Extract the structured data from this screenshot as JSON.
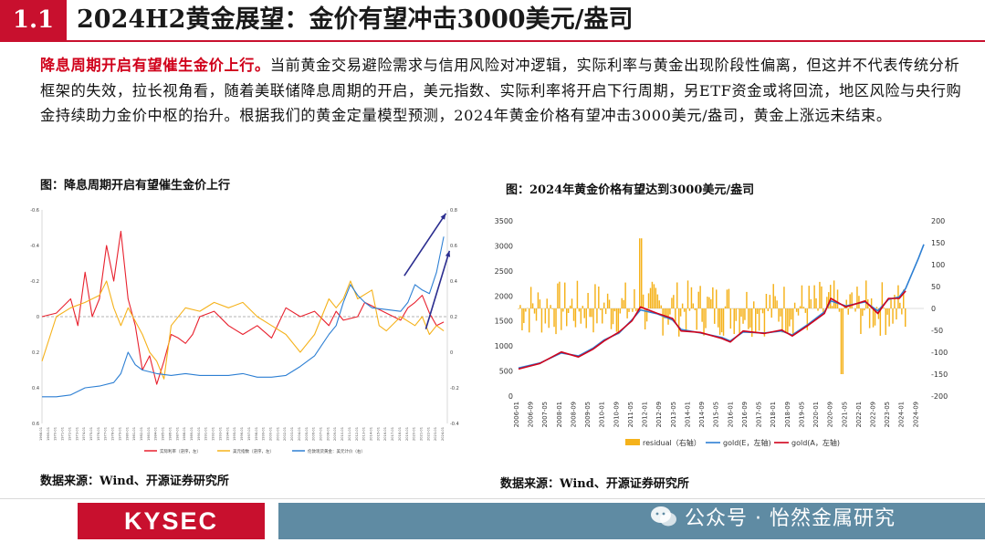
{
  "header": {
    "section_number": "1.1",
    "title": "2024H2黄金展望：金价有望冲击3000美元/盎司"
  },
  "paragraph": {
    "highlight": "降息周期开启有望催生金价上行。",
    "body": "当前黄金交易避险需求与信用风险对冲逻辑，实际利率与黄金出现阶段性偏离，但这并不代表传统分析框架的失效，拉长视角看，随着美联储降息周期的开启，美元指数、实际利率将开启下行周期，另ETF资金或将回流，地区风险与央行购金持续助力金价中枢的抬升。根据我们的黄金定量模型预测，2024年黄金价格有望冲击3000美元/盎司，黄金上涨远未结束。"
  },
  "figure_left": {
    "title": "图：降息周期开启有望催生金价上行",
    "source": "数据来源：Wind、开源证券研究所"
  },
  "figure_right": {
    "title": "图：2024年黄金价格有望达到3000美元/盎司",
    "source": "数据来源：Wind、开源证券研究所"
  },
  "footer": {
    "logo": "KYSEC",
    "watermark": "公众号 · 怡然金属研究"
  },
  "chart_data": [
    {
      "type": "line",
      "title": "降息周期开启有望催生金价上行",
      "y_left_ticks": [
        "-0.6",
        "-0.4",
        "-0.2",
        "0",
        "0.2",
        "0.4",
        "0.6"
      ],
      "y_left_range": [
        -0.6,
        0.6
      ],
      "y_left_inverted": true,
      "y_right_ticks": [
        "0.8",
        "0.6",
        "0.4",
        "0.2",
        "0",
        "-0.2",
        "-0.4"
      ],
      "y_right_range": [
        -0.4,
        0.8
      ],
      "x_start": "1968-01",
      "x_end": "2024-01",
      "legend": [
        "实际利率（逆序，左）",
        "美元指数（逆序，左）",
        "伦敦现货黄金：美元计价（右）"
      ],
      "colors": [
        "#e8212e",
        "#f5b21b",
        "#2d7fd3",
        "#2b2d8f"
      ],
      "series": [
        {
          "name": "实际利率（逆序，左）",
          "color": "#e8212e",
          "points": [
            [
              1968,
              0
            ],
            [
              1970,
              -0.02
            ],
            [
              1972,
              -0.1
            ],
            [
              1973,
              0.05
            ],
            [
              1974,
              -0.25
            ],
            [
              1975,
              0.0
            ],
            [
              1976,
              -0.1
            ],
            [
              1977,
              -0.4
            ],
            [
              1978,
              -0.2
            ],
            [
              1979,
              -0.48
            ],
            [
              1980,
              -0.1
            ],
            [
              1981,
              0.05
            ],
            [
              1982,
              0.3
            ],
            [
              1983,
              0.22
            ],
            [
              1984,
              0.38
            ],
            [
              1985,
              0.25
            ],
            [
              1986,
              0.1
            ],
            [
              1987,
              0.12
            ],
            [
              1988,
              0.15
            ],
            [
              1989,
              0.1
            ],
            [
              1990,
              0.0
            ],
            [
              1992,
              -0.03
            ],
            [
              1994,
              0.05
            ],
            [
              1996,
              0.1
            ],
            [
              1998,
              0.05
            ],
            [
              2000,
              0.12
            ],
            [
              2002,
              -0.05
            ],
            [
              2004,
              0.0
            ],
            [
              2006,
              -0.03
            ],
            [
              2008,
              0.05
            ],
            [
              2009,
              -0.03
            ],
            [
              2010,
              0.02
            ],
            [
              2012,
              0.0
            ],
            [
              2013,
              -0.08
            ],
            [
              2014,
              -0.06
            ],
            [
              2016,
              -0.02
            ],
            [
              2018,
              0.02
            ],
            [
              2019,
              -0.05
            ],
            [
              2020,
              -0.08
            ],
            [
              2021,
              -0.12
            ],
            [
              2022,
              -0.02
            ],
            [
              2023,
              0.05
            ],
            [
              2024,
              0.03
            ]
          ]
        },
        {
          "name": "美元指数（逆序，左）",
          "color": "#f5b21b",
          "points": [
            [
              1968,
              0.25
            ],
            [
              1970,
              0.0
            ],
            [
              1972,
              -0.05
            ],
            [
              1974,
              -0.08
            ],
            [
              1976,
              -0.12
            ],
            [
              1977,
              -0.2
            ],
            [
              1978,
              -0.05
            ],
            [
              1979,
              0.05
            ],
            [
              1980,
              -0.05
            ],
            [
              1982,
              0.1
            ],
            [
              1983,
              0.2
            ],
            [
              1984,
              0.25
            ],
            [
              1985,
              0.35
            ],
            [
              1986,
              0.05
            ],
            [
              1988,
              -0.05
            ],
            [
              1990,
              -0.03
            ],
            [
              1992,
              -0.08
            ],
            [
              1994,
              -0.05
            ],
            [
              1996,
              -0.08
            ],
            [
              1998,
              0.0
            ],
            [
              2000,
              0.05
            ],
            [
              2002,
              0.1
            ],
            [
              2004,
              0.2
            ],
            [
              2006,
              0.1
            ],
            [
              2008,
              -0.1
            ],
            [
              2009,
              -0.05
            ],
            [
              2010,
              -0.1
            ],
            [
              2011,
              -0.2
            ],
            [
              2012,
              -0.1
            ],
            [
              2014,
              -0.15
            ],
            [
              2015,
              0.05
            ],
            [
              2016,
              0.08
            ],
            [
              2018,
              0.0
            ],
            [
              2020,
              0.05
            ],
            [
              2021,
              0.0
            ],
            [
              2022,
              0.1
            ],
            [
              2023,
              0.05
            ],
            [
              2024,
              0.08
            ]
          ]
        },
        {
          "name": "伦敦现货黄金：美元计价（右）",
          "color": "#2d7fd3",
          "points": [
            [
              1968,
              -0.25
            ],
            [
              1970,
              -0.25
            ],
            [
              1972,
              -0.24
            ],
            [
              1974,
              -0.2
            ],
            [
              1976,
              -0.19
            ],
            [
              1978,
              -0.17
            ],
            [
              1979,
              -0.12
            ],
            [
              1980,
              0.0
            ],
            [
              1981,
              -0.07
            ],
            [
              1982,
              -0.1
            ],
            [
              1984,
              -0.12
            ],
            [
              1986,
              -0.13
            ],
            [
              1988,
              -0.12
            ],
            [
              1990,
              -0.13
            ],
            [
              1992,
              -0.13
            ],
            [
              1994,
              -0.13
            ],
            [
              1996,
              -0.12
            ],
            [
              1998,
              -0.14
            ],
            [
              2000,
              -0.14
            ],
            [
              2002,
              -0.13
            ],
            [
              2004,
              -0.08
            ],
            [
              2006,
              -0.02
            ],
            [
              2008,
              0.1
            ],
            [
              2009,
              0.15
            ],
            [
              2010,
              0.28
            ],
            [
              2011,
              0.38
            ],
            [
              2012,
              0.32
            ],
            [
              2013,
              0.28
            ],
            [
              2014,
              0.25
            ],
            [
              2016,
              0.24
            ],
            [
              2018,
              0.23
            ],
            [
              2019,
              0.28
            ],
            [
              2020,
              0.38
            ],
            [
              2021,
              0.35
            ],
            [
              2022,
              0.33
            ],
            [
              2023,
              0.45
            ],
            [
              2024,
              0.65
            ]
          ]
        }
      ],
      "annotations": [
        "up-arrow-blue-series",
        "up-arrow-red-series"
      ]
    },
    {
      "type": "bar+line",
      "title": "2024年黄金价格有望达到3000美元/盎司",
      "y_left_ticks": [
        "0",
        "500",
        "1000",
        "1500",
        "2000",
        "2500",
        "3000",
        "3500"
      ],
      "y_left_range": [
        0,
        3500
      ],
      "y_right_ticks": [
        "-200",
        "-150",
        "-100",
        "-50",
        "0",
        "50",
        "100",
        "150",
        "200"
      ],
      "y_right_range": [
        -200,
        200
      ],
      "x_labels": [
        "2006-01",
        "2006-09",
        "2007-05",
        "2008-01",
        "2008-09",
        "2009-05",
        "2010-01",
        "2010-09",
        "2011-05",
        "2012-01",
        "2012-09",
        "2013-05",
        "2014-01",
        "2014-09",
        "2015-05",
        "2016-01",
        "2016-09",
        "2017-05",
        "2018-01",
        "2018-09",
        "2019-05",
        "2020-01",
        "2020-09",
        "2021-05",
        "2022-01",
        "2022-09",
        "2023-05",
        "2024-01",
        "2024-09"
      ],
      "legend": [
        "residual（右轴）",
        "gold(E，左轴)",
        "gold(A，左轴)"
      ],
      "colors": {
        "residual": "#f5b21b",
        "gold_E": "#2d7fd3",
        "gold_A": "#d0021b"
      },
      "gold_A_points": [
        [
          2006,
          540
        ],
        [
          2007,
          650
        ],
        [
          2008,
          880
        ],
        [
          2008.8,
          780
        ],
        [
          2009.5,
          940
        ],
        [
          2010,
          1100
        ],
        [
          2010.7,
          1280
        ],
        [
          2011.3,
          1500
        ],
        [
          2011.7,
          1780
        ],
        [
          2012.5,
          1650
        ],
        [
          2013.2,
          1550
        ],
        [
          2013.6,
          1300
        ],
        [
          2014.5,
          1270
        ],
        [
          2015.5,
          1150
        ],
        [
          2015.9,
          1080
        ],
        [
          2016.5,
          1300
        ],
        [
          2017.5,
          1250
        ],
        [
          2018.3,
          1320
        ],
        [
          2018.8,
          1200
        ],
        [
          2019.5,
          1400
        ],
        [
          2020.3,
          1650
        ],
        [
          2020.6,
          1950
        ],
        [
          2021.3,
          1780
        ],
        [
          2022.2,
          1900
        ],
        [
          2022.8,
          1650
        ],
        [
          2023.3,
          1950
        ],
        [
          2023.8,
          1950
        ],
        [
          2024.1,
          2100
        ]
      ],
      "gold_E_points": [
        [
          2006,
          560
        ],
        [
          2007,
          660
        ],
        [
          2008,
          860
        ],
        [
          2008.8,
          800
        ],
        [
          2009.5,
          960
        ],
        [
          2010,
          1120
        ],
        [
          2010.7,
          1260
        ],
        [
          2011.3,
          1520
        ],
        [
          2011.7,
          1720
        ],
        [
          2012.5,
          1640
        ],
        [
          2013.2,
          1520
        ],
        [
          2013.6,
          1330
        ],
        [
          2014.5,
          1260
        ],
        [
          2015.5,
          1170
        ],
        [
          2015.9,
          1100
        ],
        [
          2016.5,
          1280
        ],
        [
          2017.5,
          1260
        ],
        [
          2018.3,
          1300
        ],
        [
          2018.8,
          1220
        ],
        [
          2019.5,
          1420
        ],
        [
          2020.3,
          1680
        ],
        [
          2020.6,
          1900
        ],
        [
          2021.3,
          1800
        ],
        [
          2022.2,
          1880
        ],
        [
          2022.8,
          1700
        ],
        [
          2023.3,
          1930
        ],
        [
          2023.8,
          1980
        ],
        [
          2024.1,
          2150
        ],
        [
          2024.4,
          2450
        ],
        [
          2024.7,
          2750
        ],
        [
          2024.95,
          3030
        ]
      ],
      "residual_summary": "monthly residual bars ranging roughly -150 to +150 around zero"
    }
  ]
}
